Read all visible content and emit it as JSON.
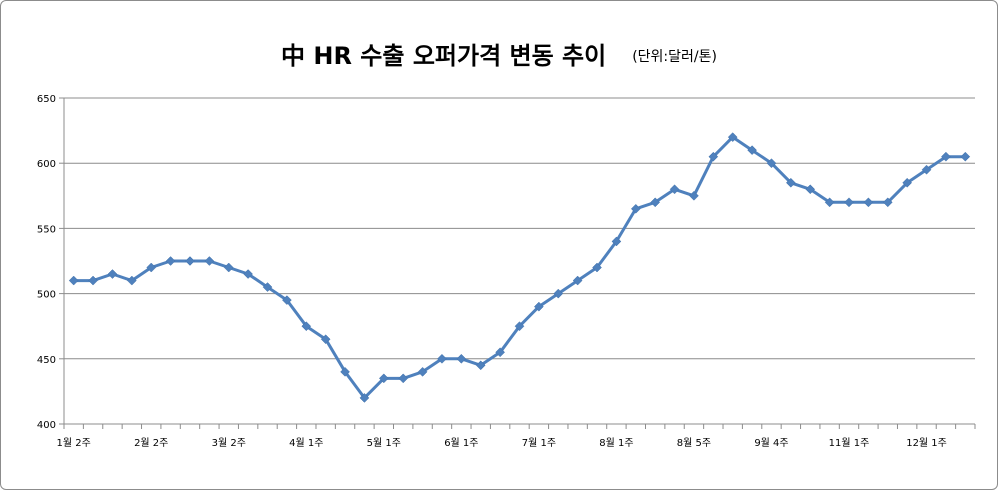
{
  "chart_data": {
    "type": "line",
    "title": "中 HR 수출 오퍼가격 변동 추이",
    "subtitle": "(단위:달러/톤)",
    "xlabel": "",
    "ylabel": "",
    "ylim": [
      400,
      650
    ],
    "yticks": [
      400,
      450,
      500,
      550,
      600,
      650
    ],
    "grid": true,
    "legend": "none",
    "line_color": "#4f81bd",
    "x_tick_labels": [
      {
        "index": 0,
        "label": "1월 2주"
      },
      {
        "index": 4,
        "label": "2월 2주"
      },
      {
        "index": 8,
        "label": "3월 2주"
      },
      {
        "index": 12,
        "label": "4월 1주"
      },
      {
        "index": 16,
        "label": "5월 1주"
      },
      {
        "index": 20,
        "label": "6월 1주"
      },
      {
        "index": 24,
        "label": "7월 1주"
      },
      {
        "index": 28,
        "label": "8월 1주"
      },
      {
        "index": 32,
        "label": "8월 5주"
      },
      {
        "index": 36,
        "label": "9월 4주"
      },
      {
        "index": 40,
        "label": "11월 1주"
      },
      {
        "index": 44,
        "label": "12월 1주"
      }
    ],
    "series": [
      {
        "values": [
          510,
          510,
          515,
          510,
          520,
          525,
          525,
          525,
          520,
          515,
          505,
          495,
          475,
          465,
          440,
          420,
          435,
          435,
          440,
          450,
          450,
          445,
          455,
          475,
          490,
          500,
          510,
          520,
          540,
          565,
          570,
          580,
          575,
          605,
          620,
          610,
          600,
          585,
          580,
          570,
          570,
          570,
          570,
          585,
          595,
          605,
          605
        ]
      }
    ]
  }
}
